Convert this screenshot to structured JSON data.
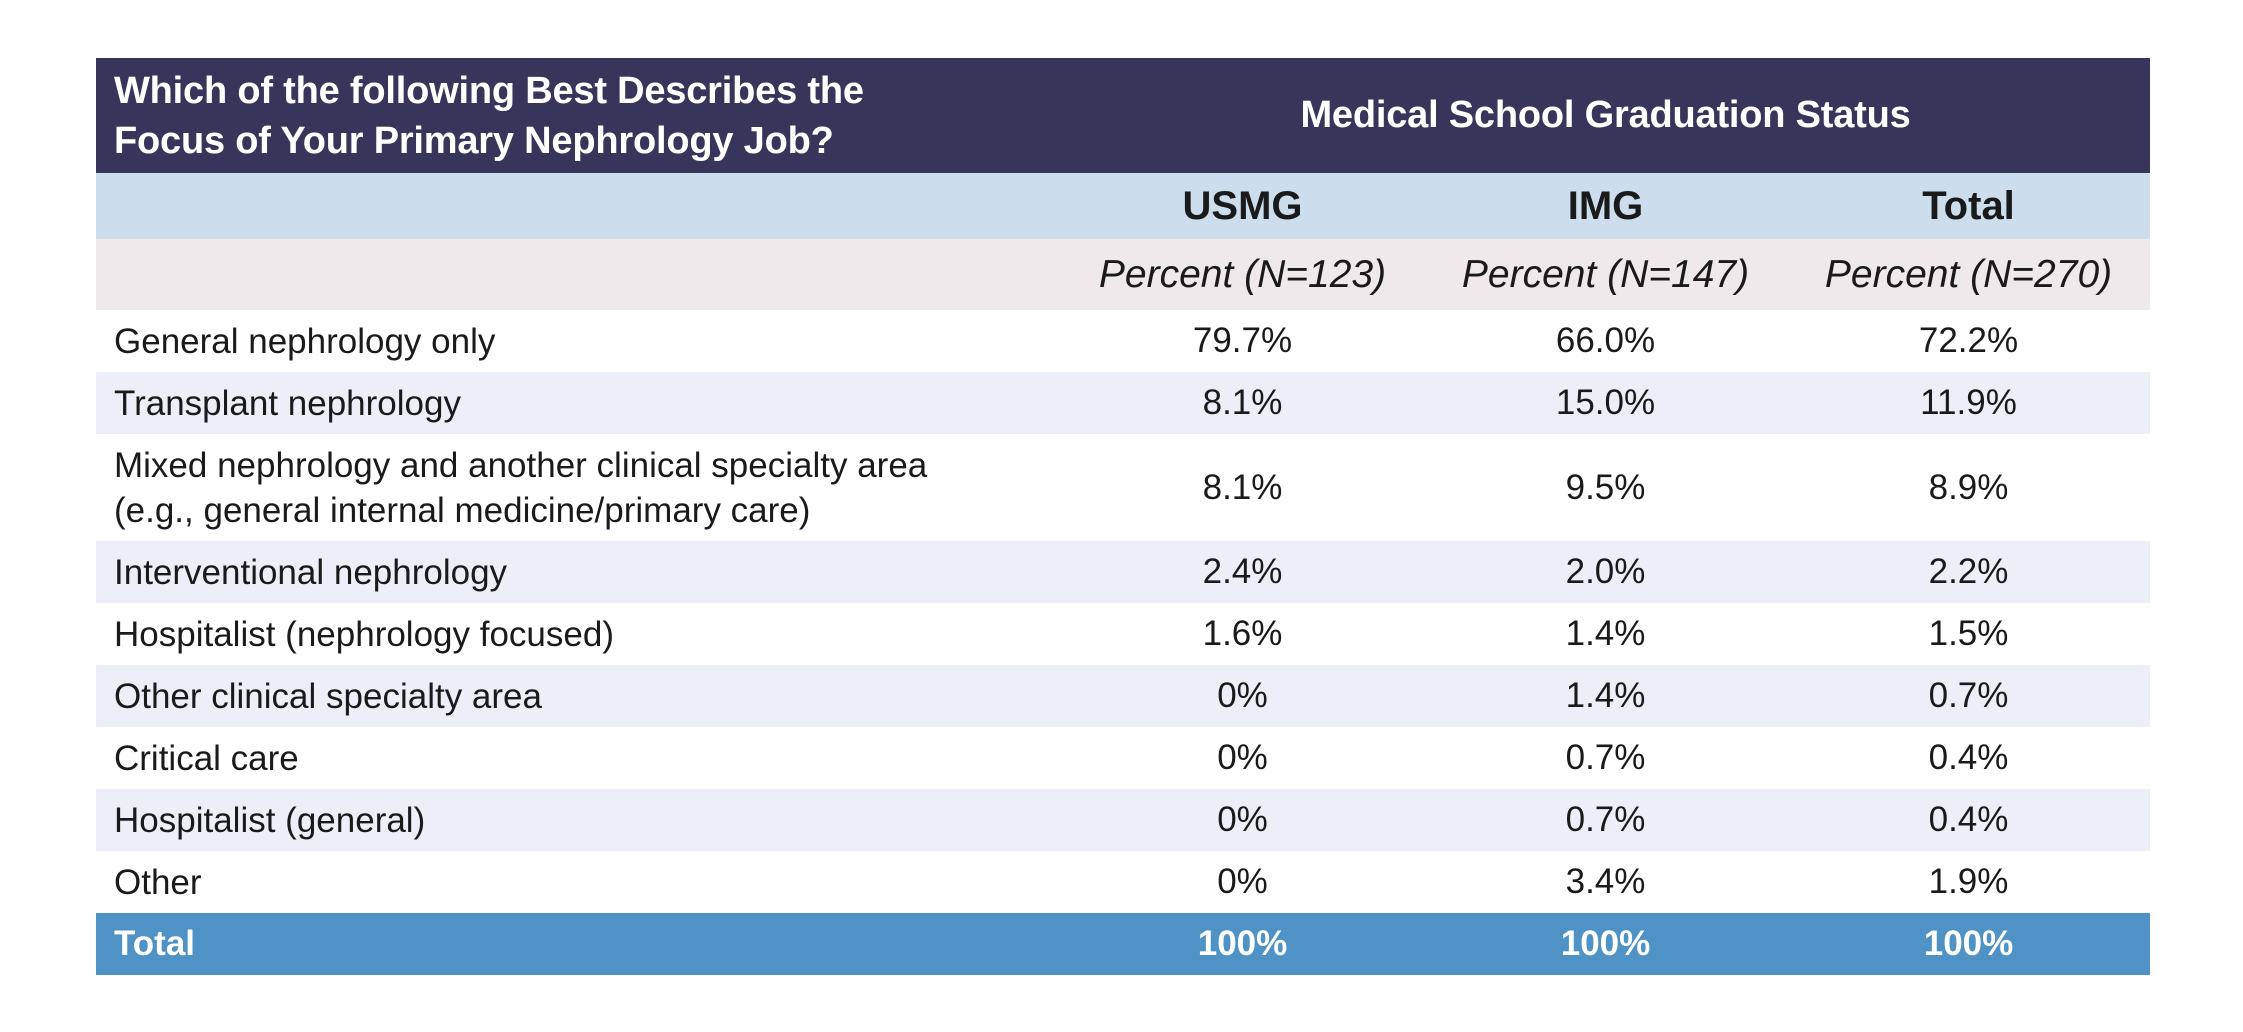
{
  "table": {
    "question_line1": "Which of the following Best Describes the",
    "question_line2": "Focus of Your Primary Nephrology Job?",
    "group_header": "Medical School Graduation Status",
    "columns": [
      "USMG",
      "IMG",
      "Total"
    ],
    "subheaders": [
      "Percent (N=123)",
      "Percent (N=147)",
      "Percent (N=270)"
    ],
    "rows": [
      {
        "label": "General nephrology only",
        "label2": "",
        "values": [
          "79.7%",
          "66.0%",
          "72.2%"
        ]
      },
      {
        "label": "Transplant nephrology",
        "label2": "",
        "values": [
          "8.1%",
          "15.0%",
          "11.9%"
        ]
      },
      {
        "label": "Mixed nephrology and another clinical specialty area",
        "label2": "(e.g., general internal medicine/primary care)",
        "values": [
          "8.1%",
          "9.5%",
          "8.9%"
        ]
      },
      {
        "label": "Interventional nephrology",
        "label2": "",
        "values": [
          "2.4%",
          "2.0%",
          "2.2%"
        ]
      },
      {
        "label": "Hospitalist (nephrology focused)",
        "label2": "",
        "values": [
          "1.6%",
          "1.4%",
          "1.5%"
        ]
      },
      {
        "label": "Other clinical specialty area",
        "label2": "",
        "values": [
          "0%",
          "1.4%",
          "0.7%"
        ]
      },
      {
        "label": "Critical care",
        "label2": "",
        "values": [
          "0%",
          "0.7%",
          "0.4%"
        ]
      },
      {
        "label": "Hospitalist (general)",
        "label2": "",
        "values": [
          "0%",
          "0.7%",
          "0.4%"
        ]
      },
      {
        "label": "Other",
        "label2": "",
        "values": [
          "0%",
          "3.4%",
          "1.9%"
        ]
      }
    ],
    "total": {
      "label": "Total",
      "values": [
        "100%",
        "100%",
        "100%"
      ]
    }
  },
  "colors": {
    "header_dark": "#38355b",
    "header_light_blue": "#ccdded",
    "subheader_pink": "#f0e9ec",
    "row_alt": "#eceff8",
    "total_blue": "#4f92c6"
  }
}
